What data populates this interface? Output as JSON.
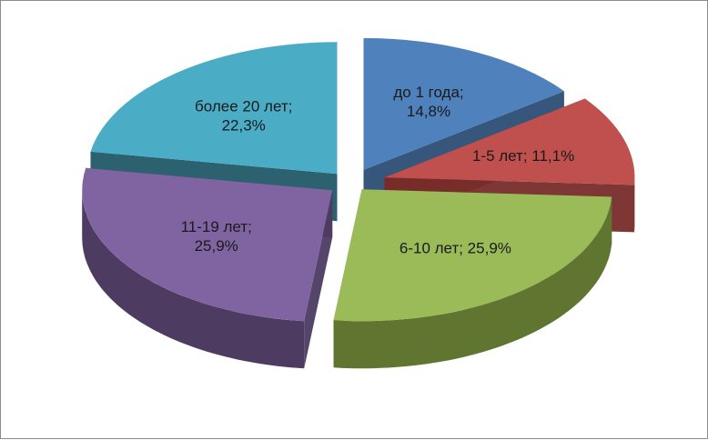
{
  "chart_data": {
    "type": "pie",
    "style": "3d-exploded",
    "title": "",
    "legend": "none",
    "slices": [
      {
        "label": "до 1 года",
        "percent_label": "14,8%",
        "value": 14.8,
        "color": "#4f81bd",
        "side_color": "#2c4d75",
        "label_lines": [
          "до 1 года;",
          "14,8%"
        ]
      },
      {
        "label": "1-5 лет",
        "percent_label": "11,1%",
        "value": 11.1,
        "color": "#c0504d",
        "side_color": "#772c2a",
        "label_lines": [
          "1-5 лет; 11,1%"
        ]
      },
      {
        "label": "6-10 лет",
        "percent_label": "25,9%",
        "value": 25.9,
        "color": "#9bbb59",
        "side_color": "#5f7530",
        "label_lines": [
          "6-10 лет; 25,9%"
        ]
      },
      {
        "label": "11-19 лет",
        "percent_label": "25,9%",
        "value": 25.9,
        "color": "#8064a2",
        "side_color": "#4d3b62",
        "label_lines": [
          "11-19 лет;",
          "25,9%"
        ]
      },
      {
        "label": "более 20 лет",
        "percent_label": "22,3%",
        "value": 22.3,
        "color": "#4bacc6",
        "side_color": "#215968",
        "label_lines": [
          "более 20 лет;",
          "22,3%"
        ]
      }
    ]
  }
}
